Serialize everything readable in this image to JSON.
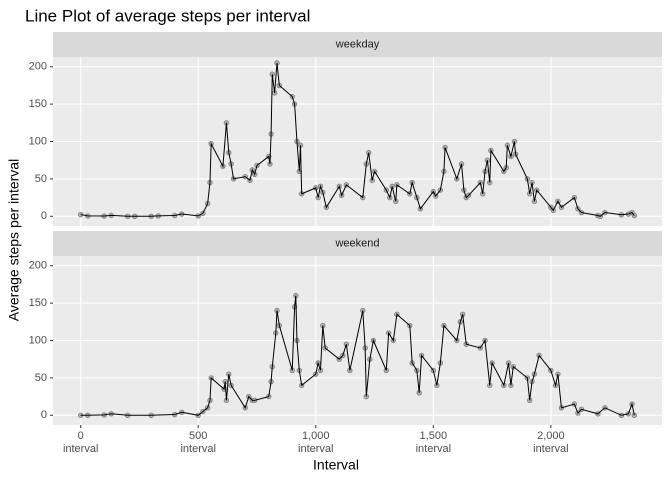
{
  "chart_data": {
    "type": "line",
    "title": "Line Plot of average steps per interval",
    "x_label": "Interval",
    "y_label": "Average steps per interval",
    "xlim": [
      -117.75,
      2472.75
    ],
    "ylim": [
      -13,
      213
    ],
    "xticks": [
      {
        "value": 0,
        "label": "0\ninterval"
      },
      {
        "value": 500,
        "label": "500\ninterval"
      },
      {
        "value": 1000,
        "label": "1,000\ninterval"
      },
      {
        "value": 1500,
        "label": "1,500\ninterval"
      },
      {
        "value": 2000,
        "label": "2,000\ninterval"
      }
    ],
    "yticks": [
      0,
      50,
      100,
      150,
      200
    ],
    "grid": true,
    "line_color": "#000000",
    "point_color": "#b0b0b0",
    "facets": [
      {
        "name": "weekday",
        "x": [
          0,
          30,
          100,
          130,
          200,
          230,
          300,
          330,
          400,
          430,
          500,
          520,
          540,
          550,
          555,
          605,
          620,
          630,
          640,
          650,
          700,
          720,
          730,
          740,
          750,
          800,
          805,
          810,
          815,
          825,
          835,
          845,
          900,
          910,
          920,
          930,
          935,
          940,
          1000,
          1010,
          1020,
          1030,
          1045,
          1100,
          1110,
          1130,
          1200,
          1215,
          1225,
          1240,
          1250,
          1300,
          1315,
          1325,
          1340,
          1345,
          1400,
          1410,
          1430,
          1445,
          1500,
          1510,
          1530,
          1545,
          1550,
          1600,
          1620,
          1630,
          1640,
          1650,
          1700,
          1710,
          1720,
          1730,
          1740,
          1745,
          1800,
          1810,
          1815,
          1830,
          1845,
          1850,
          1900,
          1910,
          1920,
          1930,
          1940,
          2000,
          2010,
          2030,
          2045,
          2100,
          2115,
          2130,
          2200,
          2210,
          2230,
          2300,
          2330,
          2345,
          2355
        ],
        "values": [
          2.3,
          0.5,
          0.3,
          1.2,
          0,
          0,
          0,
          0.5,
          1,
          3,
          0.5,
          4,
          17,
          45,
          97,
          67,
          125,
          85,
          70,
          50,
          53,
          48,
          62,
          56,
          68,
          80,
          70,
          110,
          190,
          165,
          205,
          175,
          160,
          150,
          100,
          60,
          95,
          30,
          38,
          25,
          40,
          32,
          12,
          40,
          28,
          42,
          25,
          70,
          85,
          48,
          60,
          35,
          25,
          40,
          20,
          42,
          30,
          45,
          25,
          10,
          33,
          27,
          35,
          60,
          92,
          50,
          70,
          35,
          25,
          28,
          45,
          30,
          60,
          75,
          45,
          88,
          60,
          65,
          95,
          80,
          100,
          83,
          50,
          30,
          45,
          20,
          35,
          12,
          8,
          20,
          12,
          25,
          10,
          5,
          1,
          0,
          5,
          2,
          3,
          5,
          1
        ]
      },
      {
        "name": "weekend",
        "x": [
          0,
          30,
          100,
          130,
          200,
          300,
          400,
          430,
          500,
          520,
          540,
          550,
          555,
          610,
          615,
          620,
          630,
          640,
          700,
          715,
          730,
          740,
          800,
          810,
          815,
          830,
          835,
          845,
          900,
          910,
          915,
          920,
          930,
          940,
          1000,
          1010,
          1020,
          1030,
          1040,
          1100,
          1115,
          1130,
          1145,
          1200,
          1210,
          1215,
          1230,
          1245,
          1300,
          1310,
          1330,
          1345,
          1400,
          1410,
          1430,
          1440,
          1450,
          1500,
          1515,
          1530,
          1545,
          1600,
          1615,
          1625,
          1640,
          1700,
          1720,
          1740,
          1750,
          1800,
          1820,
          1830,
          1840,
          1900,
          1910,
          1920,
          1930,
          1950,
          2000,
          2020,
          2030,
          2045,
          2100,
          2115,
          2130,
          2200,
          2230,
          2300,
          2330,
          2345,
          2355
        ],
        "values": [
          0,
          0,
          0.5,
          2,
          0,
          0,
          1,
          4,
          0,
          5,
          10,
          20,
          50,
          35,
          45,
          20,
          55,
          40,
          10,
          25,
          20,
          20,
          25,
          45,
          65,
          110,
          140,
          120,
          60,
          145,
          160,
          100,
          60,
          40,
          55,
          70,
          60,
          120,
          90,
          75,
          80,
          95,
          60,
          140,
          90,
          25,
          75,
          100,
          60,
          110,
          100,
          135,
          120,
          70,
          60,
          30,
          80,
          60,
          40,
          70,
          120,
          100,
          125,
          135,
          95,
          90,
          100,
          40,
          70,
          40,
          70,
          40,
          65,
          50,
          20,
          45,
          55,
          80,
          60,
          40,
          55,
          10,
          15,
          3,
          8,
          2,
          10,
          0,
          2,
          15,
          0
        ]
      }
    ]
  }
}
